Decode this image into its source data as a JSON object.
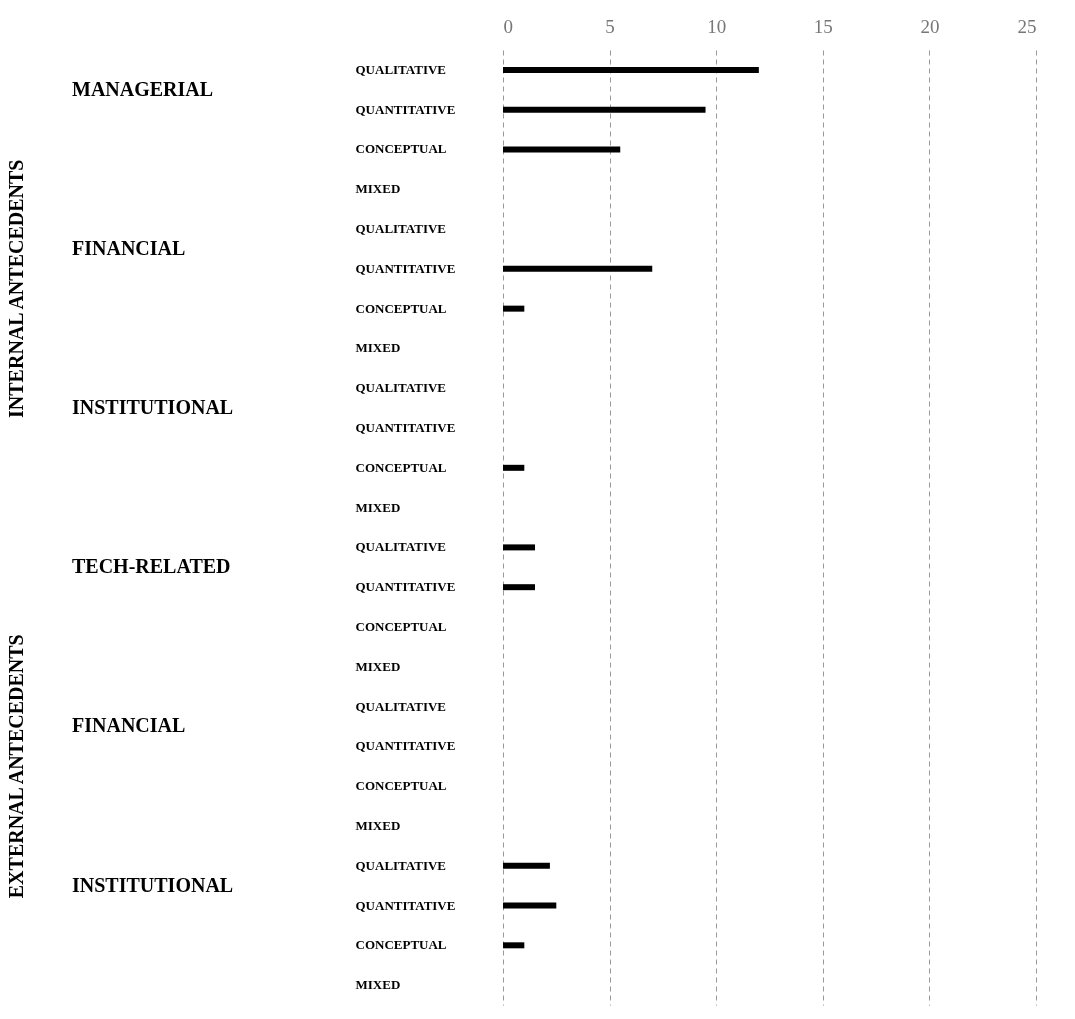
{
  "chart_data": {
    "type": "bar",
    "orientation": "horizontal",
    "categories": [
      "QUALITATIVE",
      "QUANTITATIVE",
      "CONCEPTUAL",
      "MIXED",
      "QUALITATIVE",
      "QUANTITATIVE",
      "CONCEPTUAL",
      "MIXED",
      "QUALITATIVE",
      "QUANTITATIVE",
      "CONCEPTUAL",
      "MIXED",
      "QUALITATIVE",
      "QUANTITATIVE",
      "CONCEPTUAL",
      "MIXED",
      "QUALITATIVE",
      "QUANTITATIVE",
      "CONCEPTUAL",
      "MIXED",
      "QUALITATIVE",
      "QUANTITATIVE",
      "CONCEPTUAL",
      "MIXED"
    ],
    "values": [
      12,
      9.5,
      5.5,
      0,
      0,
      7,
      1,
      0,
      0,
      0,
      1,
      0,
      1.5,
      1.5,
      0,
      0,
      0,
      0,
      0,
      0,
      2.2,
      2.5,
      1,
      0
    ],
    "color": "#000000",
    "xlim": [
      0,
      25
    ],
    "xticks": [
      0,
      5,
      10,
      15,
      20,
      25
    ],
    "grid": "x",
    "annotations": [
      "INTERNAL ANTECEDENTS",
      "EXTERNAL ANTECEDENTS",
      "MANAGERIAL",
      "FINANCIAL",
      "INSTITUTIONAL",
      "TECH-RELATED",
      "FINANCIAL",
      "INSTITUTIONAL"
    ]
  }
}
